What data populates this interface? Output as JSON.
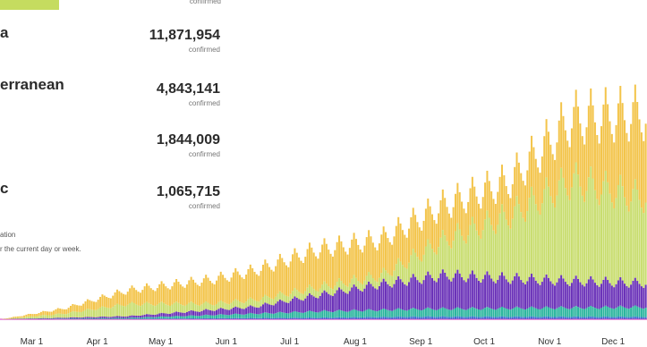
{
  "panel": {
    "top_sub": "confirmed",
    "regions": [
      {
        "name": "a",
        "count": "11,871,954",
        "sub": "confirmed"
      },
      {
        "name": "erranean",
        "count": "4,843,141",
        "sub": "confirmed"
      },
      {
        "name": "",
        "count": "1,844,009",
        "sub": "confirmed"
      },
      {
        "name": "c",
        "count": "1,065,715",
        "sub": "confirmed"
      }
    ],
    "note_line1": "ation",
    "note_line2": "r the current day or week."
  },
  "colors": {
    "accent_green": "#c5dc5f",
    "series_americas": "#f3c44a",
    "series_europe": "#c8dd6e",
    "series_se_asia": "#6a31b8",
    "series_e_med": "#2bb59e",
    "series_africa": "#3a6fd0",
    "series_w_pacific": "#d62fb8"
  },
  "chart_data": {
    "type": "bar",
    "stacked": true,
    "x_tick_labels": [
      "Mar 1",
      "Apr 1",
      "May 1",
      "Jun 1",
      "Jul 1",
      "Aug 1",
      "Sep 1",
      "Oct 1",
      "Nov 1",
      "Dec 1"
    ],
    "x_range": [
      "2020-02-15",
      "2020-12-16"
    ],
    "granularity": "daily",
    "series": [
      {
        "key": "w_pacific",
        "color": "#d62fb8",
        "peaks": [
          [
            0,
            0
          ],
          [
            60,
            300
          ],
          [
            180,
            800
          ],
          [
            300,
            1200
          ]
        ]
      },
      {
        "key": "africa",
        "color": "#3a6fd0",
        "peaks": [
          [
            0,
            0
          ],
          [
            60,
            800
          ],
          [
            150,
            4000
          ],
          [
            200,
            7000
          ],
          [
            300,
            6000
          ]
        ]
      },
      {
        "key": "e_med",
        "color": "#2bb59e",
        "peaks": [
          [
            0,
            0
          ],
          [
            60,
            3000
          ],
          [
            150,
            18000
          ],
          [
            200,
            22000
          ],
          [
            300,
            28000
          ]
        ]
      },
      {
        "key": "se_asia",
        "color": "#6a31b8",
        "peaks": [
          [
            0,
            0
          ],
          [
            60,
            5000
          ],
          [
            120,
            20000
          ],
          [
            180,
            75000
          ],
          [
            210,
            97000
          ],
          [
            260,
            80000
          ],
          [
            300,
            70000
          ]
        ]
      },
      {
        "key": "europe",
        "color": "#c8dd6e",
        "peaks": [
          [
            0,
            0
          ],
          [
            30,
            12000
          ],
          [
            60,
            35000
          ],
          [
            100,
            18000
          ],
          [
            180,
            25000
          ],
          [
            240,
            180000
          ],
          [
            270,
            290000
          ],
          [
            300,
            250000
          ]
        ]
      },
      {
        "key": "americas",
        "color": "#f3c44a",
        "peaks": [
          [
            0,
            0
          ],
          [
            30,
            15000
          ],
          [
            60,
            40000
          ],
          [
            120,
            85000
          ],
          [
            150,
            110000
          ],
          [
            180,
            105000
          ],
          [
            240,
            100000
          ],
          [
            270,
            180000
          ],
          [
            300,
            240000
          ]
        ]
      }
    ],
    "weekly_cycle": [
      1.0,
      0.92,
      0.86,
      0.82,
      0.9,
      1.0,
      1.08
    ],
    "ylim": [
      0,
      850000
    ],
    "grid": false
  }
}
